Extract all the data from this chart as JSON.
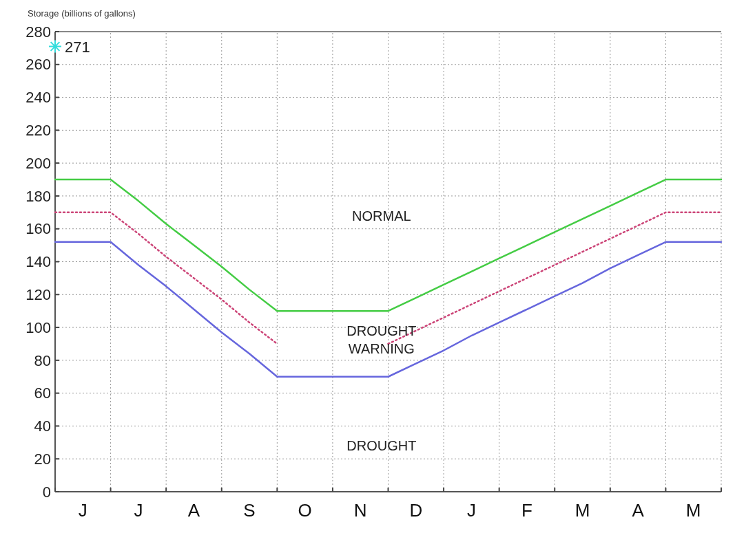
{
  "chart_data": {
    "type": "line",
    "ylabel": "Storage (billions of gallons)",
    "categories": [
      null,
      "J",
      null,
      "J",
      null,
      "A",
      null,
      "S",
      null,
      "O",
      null,
      "N",
      null,
      "D",
      null,
      "J",
      null,
      "F",
      null,
      "M",
      null,
      "A",
      null,
      "M",
      null
    ],
    "ylim": [
      0,
      280
    ],
    "yticks": [
      0,
      20,
      40,
      60,
      80,
      100,
      120,
      140,
      160,
      180,
      200,
      220,
      240,
      260,
      280
    ],
    "grid": true,
    "marker": "none",
    "series": [
      {
        "color": "#44cc44",
        "values": [
          190,
          190,
          190,
          177,
          163,
          150,
          137,
          123,
          110,
          110,
          110,
          110,
          110,
          118,
          126,
          134,
          142,
          150,
          158,
          166,
          174,
          182,
          190,
          190,
          190
        ],
        "line_style": "solid"
      },
      {
        "color": "#cc4477",
        "values": [
          170,
          170,
          170,
          157,
          143,
          130,
          117,
          103,
          90,
          null,
          null,
          null,
          90,
          98,
          106,
          114,
          122,
          130,
          138,
          146,
          154,
          162,
          170,
          170,
          170
        ],
        "line_style": "dotted"
      },
      {
        "color": "#6666dd",
        "values": [
          152,
          152,
          152,
          138,
          125,
          111,
          97,
          84,
          70,
          70,
          70,
          70,
          70,
          78,
          86,
          95,
          103,
          111,
          119,
          127,
          136,
          144,
          152,
          152,
          152
        ],
        "line_style": "solid"
      },
      {
        "type": "scatter",
        "color": "#33dddd",
        "values": [
          271,
          null,
          null,
          null,
          null,
          null,
          null,
          null,
          null,
          null,
          null,
          null,
          null,
          null,
          null,
          null,
          null,
          null,
          null,
          null,
          null,
          null,
          null,
          null,
          null
        ],
        "marker": "cross",
        "value_labels": [
          "271",
          null,
          null,
          null,
          null,
          null,
          null,
          null,
          null,
          null,
          null,
          null,
          null,
          null,
          null,
          null,
          null,
          null,
          null,
          null,
          null,
          null,
          null,
          null,
          null
        ]
      }
    ],
    "annotations": [
      "NORMAL",
      "DROUGHT\nWARNING",
      "DROUGHT"
    ]
  }
}
